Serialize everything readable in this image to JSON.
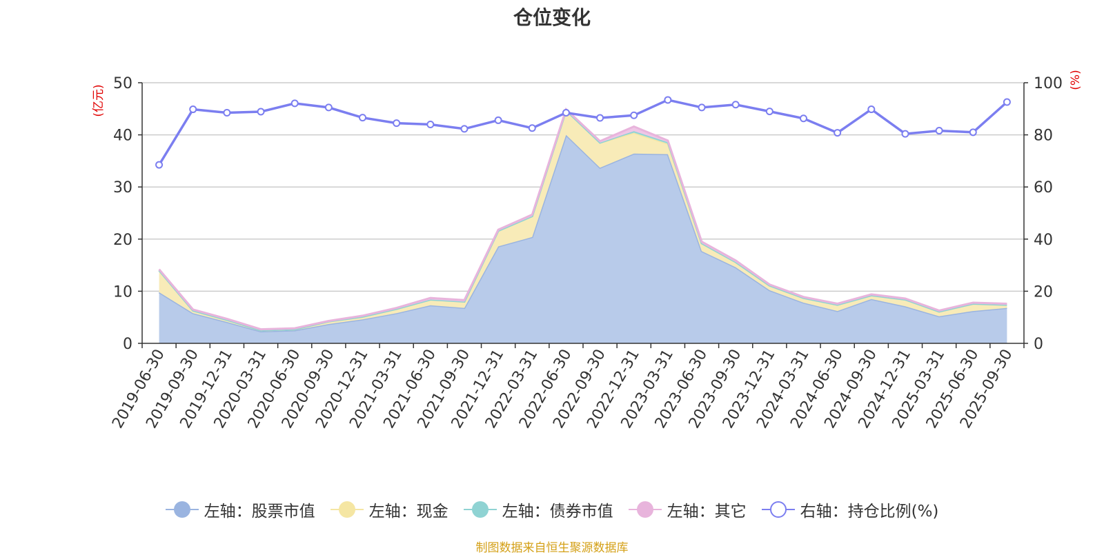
{
  "title": "仓位变化",
  "source_note": "制图数据来自恒生聚源数据库",
  "legend": [
    {
      "label": "左轴：股票市值",
      "color": "#9ab4e0",
      "hollow": false
    },
    {
      "label": "左轴：现金",
      "color": "#f5e6a3",
      "hollow": false
    },
    {
      "label": "左轴：债券市值",
      "color": "#8fd3d3",
      "hollow": false
    },
    {
      "label": "左轴：其它",
      "color": "#e8b4dc",
      "hollow": false
    },
    {
      "label": "右轴：持仓比例(%)",
      "color": "#7b7ef0",
      "hollow": true
    }
  ],
  "chart_data": {
    "type": "area",
    "title": "仓位变化",
    "left_axis_label": "(亿元)",
    "right_axis_label": "(%)",
    "left_ylim": [
      0,
      50
    ],
    "right_ylim": [
      0,
      100
    ],
    "left_ticks": [
      0,
      10,
      20,
      30,
      40,
      50
    ],
    "right_ticks": [
      0,
      20,
      40,
      60,
      80,
      100
    ],
    "categories": [
      "2019-06-30",
      "2019-09-30",
      "2019-12-31",
      "2020-03-31",
      "2020-06-30",
      "2020-09-30",
      "2020-12-31",
      "2021-03-31",
      "2021-06-30",
      "2021-09-30",
      "2021-12-31",
      "2022-03-31",
      "2022-06-30",
      "2022-09-30",
      "2022-12-31",
      "2023-03-31",
      "2023-06-30",
      "2023-09-30",
      "2023-12-31",
      "2024-03-31",
      "2024-06-30",
      "2024-09-30",
      "2024-12-31",
      "2025-03-31",
      "2025-06-30",
      "2025-09-30"
    ],
    "stacked_series": [
      {
        "name": "左轴：股票市值",
        "color": "#9ab4e0",
        "fill": "#b8cbea",
        "values": [
          9.8,
          5.8,
          4.1,
          2.3,
          2.5,
          3.7,
          4.6,
          5.8,
          7.3,
          6.8,
          18.6,
          20.4,
          40.0,
          33.7,
          36.4,
          36.3,
          17.7,
          14.6,
          10.2,
          7.8,
          6.2,
          8.5,
          7.1,
          5.2,
          6.2,
          6.8
        ]
      },
      {
        "name": "左轴：现金",
        "color": "#f5e6a3",
        "fill": "#f8ebb8",
        "values": [
          4.2,
          0.5,
          0.4,
          0.2,
          0.2,
          0.5,
          0.5,
          0.8,
          1.1,
          1.2,
          3.0,
          4.0,
          4.7,
          4.8,
          4.0,
          2.0,
          1.5,
          1.0,
          0.9,
          0.9,
          1.2,
          0.7,
          1.3,
          0.9,
          1.4,
          0.6
        ]
      },
      {
        "name": "左轴：债券市值",
        "color": "#8fd3d3",
        "fill": "#a3dcdc",
        "values": [
          0,
          0,
          0,
          0,
          0,
          0,
          0,
          0,
          0,
          0,
          0,
          0,
          0,
          0,
          0.3,
          0.3,
          0,
          0,
          0,
          0,
          0,
          0,
          0,
          0,
          0,
          0
        ]
      },
      {
        "name": "左轴：其它",
        "color": "#e8b4dc",
        "fill": "#efc6e6",
        "values": [
          0.2,
          0.2,
          0.2,
          0.2,
          0.2,
          0.1,
          0.2,
          0.2,
          0.3,
          0.3,
          0.2,
          0.3,
          0.2,
          0.3,
          0.9,
          0.3,
          0.3,
          0.3,
          0.2,
          0.2,
          0.2,
          0.2,
          0.2,
          0.2,
          0.2,
          0.2
        ]
      }
    ],
    "line_series": {
      "name": "右轴：持仓比例(%)",
      "color": "#7b7ef0",
      "values": [
        68.5,
        89.8,
        88.5,
        88.9,
        92.1,
        90.5,
        86.6,
        84.5,
        84.0,
        82.3,
        85.6,
        82.6,
        88.5,
        86.5,
        87.5,
        93.4,
        90.5,
        91.6,
        89.0,
        86.3,
        80.8,
        89.8,
        80.4,
        81.6,
        81.0,
        92.6
      ]
    }
  }
}
